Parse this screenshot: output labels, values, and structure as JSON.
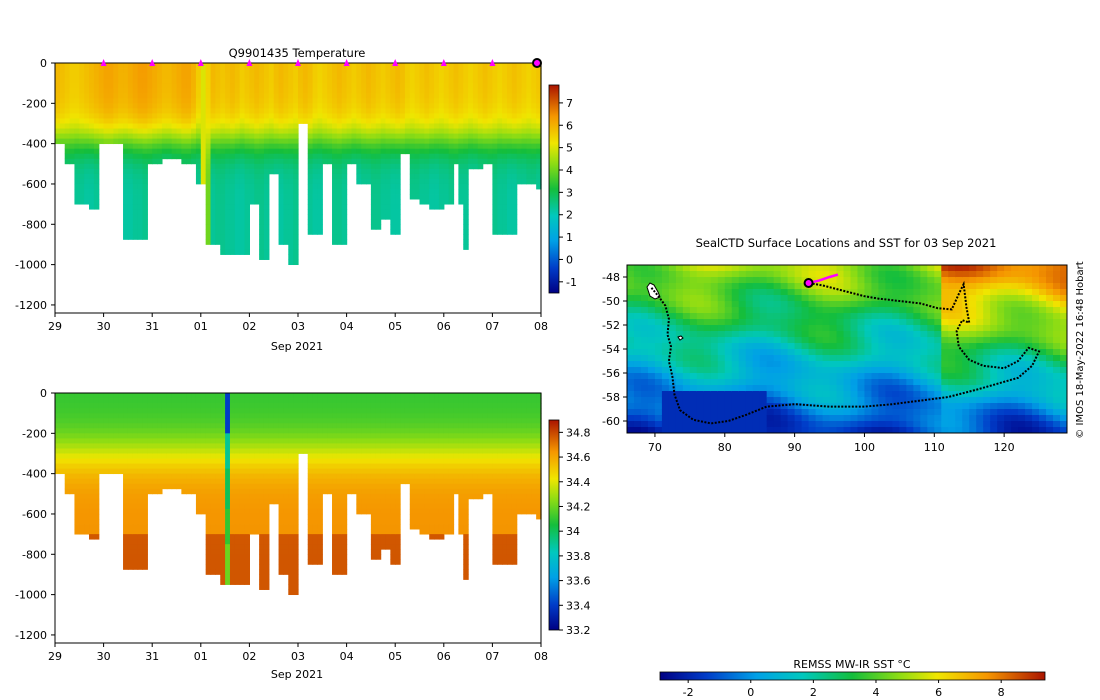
{
  "chart_data": [
    {
      "type": "heatmap",
      "title": "Q9901435  Temperature",
      "xlabel": "Sep 2021",
      "ylabel": "",
      "x_ticks": [
        "29",
        "30",
        "31",
        "01",
        "02",
        "03",
        "04",
        "05",
        "06",
        "07",
        "08"
      ],
      "x_range_days": [
        0,
        10
      ],
      "y_ticks": [
        0,
        -200,
        -400,
        -600,
        -800,
        -1000,
        -1200
      ],
      "ylim": [
        -1240,
        0
      ],
      "colorbar": {
        "ticks": [
          -1,
          0,
          1,
          2,
          3,
          4,
          5,
          6,
          7
        ],
        "range": [
          -1.5,
          7.8
        ]
      },
      "profile_days": [
        0.0,
        0.1,
        0.2,
        0.3,
        0.4,
        0.5,
        0.6,
        0.7,
        0.8,
        0.9,
        1.0,
        1.1,
        1.2,
        1.3,
        1.4,
        1.5,
        1.6,
        1.7,
        1.8,
        1.9,
        2.0,
        2.1,
        2.2,
        2.3,
        2.4,
        2.5,
        2.6,
        2.7,
        2.8,
        2.9,
        3.0,
        3.1,
        3.2,
        3.3,
        3.4,
        3.5,
        3.6,
        3.7,
        3.8,
        3.9,
        4.0,
        4.1,
        4.2,
        4.3,
        4.4,
        4.5,
        4.6,
        4.7,
        4.8,
        4.9,
        5.0,
        5.1,
        5.2,
        5.3,
        5.4,
        5.5,
        5.6,
        5.7,
        5.8,
        5.9,
        6.0,
        6.1,
        6.2,
        6.3,
        6.4,
        6.5,
        6.6,
        6.7,
        6.8,
        6.9,
        7.0,
        7.1,
        7.2,
        7.3,
        7.4,
        7.5,
        7.6,
        7.7,
        7.8,
        7.9,
        8.0,
        8.1,
        8.2,
        8.3,
        8.4,
        8.5,
        8.6,
        8.7,
        8.8,
        8.9,
        9.0,
        9.1,
        9.2,
        9.3,
        9.4,
        9.5,
        9.6,
        9.7,
        9.8,
        9.9
      ],
      "profile_max_depth_m": [
        400,
        400,
        500,
        500,
        700,
        700,
        700,
        710,
        710,
        400,
        400,
        400,
        400,
        400,
        860,
        860,
        860,
        860,
        860,
        480,
        480,
        480,
        460,
        460,
        460,
        460,
        480,
        480,
        480,
        600,
        600,
        900,
        900,
        900,
        950,
        950,
        950,
        950,
        950,
        950,
        700,
        700,
        970,
        970,
        550,
        550,
        880,
        880,
        1000,
        1000,
        280,
        280,
        840,
        840,
        840,
        500,
        500,
        900,
        900,
        900,
        500,
        500,
        600,
        600,
        600,
        820,
        820,
        760,
        760,
        840,
        840,
        430,
        430,
        660,
        660,
        700,
        700,
        710,
        710,
        710,
        700,
        700,
        500,
        700,
        920,
        520,
        520,
        520,
        500,
        500,
        830,
        830,
        830,
        840,
        840,
        600,
        600,
        600,
        600,
        620
      ],
      "surface_temperature_c": [
        5.9,
        5.8,
        5.7,
        5.6,
        5.6,
        5.7,
        5.8,
        5.9,
        6.0,
        6.1,
        6.2,
        6.2,
        6.1,
        6.0,
        6.0,
        6.1,
        6.2,
        6.3,
        6.3,
        6.2,
        6.1,
        6.0,
        5.9,
        5.9,
        6.0,
        6.1,
        6.2,
        6.2,
        6.0,
        5.6,
        5.0,
        5.5,
        5.9,
        5.8,
        5.7,
        5.8,
        5.9,
        5.8,
        5.6,
        5.7,
        5.8,
        5.9,
        5.8,
        5.7,
        5.6,
        5.8,
        5.9,
        5.8,
        5.7,
        5.6,
        5.8,
        5.9,
        5.8,
        5.6,
        5.5,
        5.6,
        5.7,
        5.8,
        5.9,
        5.8,
        5.7,
        5.6,
        5.7,
        5.8,
        5.9,
        5.8,
        5.7,
        5.6,
        5.7,
        5.8,
        5.9,
        5.8,
        5.6,
        5.5,
        5.6,
        5.7,
        5.8,
        5.7,
        5.6,
        5.5,
        5.6,
        5.7,
        5.8,
        5.7,
        5.6,
        5.5,
        5.6,
        5.7,
        5.8,
        5.7,
        5.6,
        5.5,
        5.6,
        5.7,
        5.8,
        5.7,
        5.6,
        5.5,
        5.6,
        5.7
      ],
      "deep_temperature_c": [
        2.3,
        2.3,
        2.4,
        2.4,
        2.3,
        2.3,
        2.2,
        2.2,
        2.3,
        2.3,
        2.4,
        2.4,
        2.3,
        2.3,
        2.2,
        2.2,
        2.3,
        2.3,
        2.4,
        2.4,
        2.3,
        2.3,
        2.2,
        2.2,
        2.3,
        2.3,
        2.4,
        2.4,
        2.3,
        2.3,
        5.0,
        4.0,
        2.3,
        2.4,
        2.4,
        2.3,
        2.3,
        2.2,
        2.2,
        2.3,
        2.3,
        2.4,
        2.4,
        2.3,
        2.3,
        2.2,
        2.2,
        2.3,
        2.3,
        2.4,
        2.4,
        2.3,
        2.3,
        2.2,
        2.2,
        2.3,
        2.3,
        2.4,
        2.4,
        2.3,
        2.3,
        2.2,
        2.2,
        2.3,
        2.3,
        2.4,
        2.4,
        2.3,
        2.3,
        2.2,
        2.2,
        2.3,
        2.3,
        2.4,
        2.4,
        2.3,
        2.3,
        2.2,
        2.2,
        2.3,
        2.3,
        2.4,
        2.4,
        2.3,
        2.3,
        2.2,
        2.2,
        2.3,
        2.3,
        2.4,
        2.4,
        2.3,
        2.3,
        2.2,
        2.2,
        2.3,
        2.3,
        2.4,
        2.4,
        2.3
      ],
      "thermocline_depth_m": 380,
      "marker_days": [
        1,
        2,
        3,
        4,
        5,
        6,
        7,
        8,
        9
      ],
      "latest_profile_day": 10
    },
    {
      "type": "heatmap",
      "title": "",
      "xlabel": "Sep 2021",
      "ylabel": "",
      "x_ticks": [
        "29",
        "30",
        "31",
        "01",
        "02",
        "03",
        "04",
        "05",
        "06",
        "07",
        "08"
      ],
      "x_range_days": [
        0,
        10
      ],
      "y_ticks": [
        0,
        -200,
        -400,
        -600,
        -800,
        -1000,
        -1200
      ],
      "ylim": [
        -1240,
        0
      ],
      "colorbar": {
        "ticks": [
          "33.2",
          "33.4",
          "33.6",
          "33.8",
          "34",
          "34.2",
          "34.4",
          "34.6",
          "34.8"
        ],
        "range": [
          33.2,
          34.9
        ]
      },
      "surface_salinity": 34.1,
      "deep_salinity": 34.65,
      "anomalous_profile_day": 3.5,
      "anomalous_profile_salinity": [
        33.4,
        33.9,
        34.0,
        34.1,
        34.2
      ]
    },
    {
      "type": "heatmap",
      "title": "SealCTD Surface Locations and SST for 03 Sep 2021",
      "xlabel": "",
      "ylabel": "",
      "xlim": [
        66,
        129
      ],
      "ylim": [
        -61,
        -47
      ],
      "x_ticks": [
        70,
        80,
        90,
        100,
        110,
        120
      ],
      "y_ticks": [
        -48,
        -50,
        -52,
        -54,
        -56,
        -58,
        -60
      ],
      "colorbar": {
        "label": "REMSS MW-IR SST °C",
        "ticks": [
          -2,
          0,
          2,
          4,
          6,
          8
        ],
        "range": [
          -2.9,
          9.4
        ]
      },
      "track_lon_lat": [
        [
          69.5,
          -48.9
        ],
        [
          70.5,
          -49.6
        ],
        [
          71.5,
          -50.4
        ],
        [
          72.0,
          -51.5
        ],
        [
          71.8,
          -52.8
        ],
        [
          72.3,
          -53.8
        ],
        [
          72.0,
          -55.0
        ],
        [
          72.5,
          -56.3
        ],
        [
          72.8,
          -57.8
        ],
        [
          73.6,
          -59.1
        ],
        [
          75.5,
          -59.9
        ],
        [
          78.0,
          -60.2
        ],
        [
          80.5,
          -60.0
        ],
        [
          83.0,
          -59.5
        ],
        [
          86.0,
          -58.8
        ],
        [
          90.0,
          -58.6
        ],
        [
          95.0,
          -58.8
        ],
        [
          100.0,
          -58.8
        ],
        [
          104.0,
          -58.6
        ],
        [
          108.0,
          -58.3
        ],
        [
          112.0,
          -58.0
        ],
        [
          116.0,
          -57.4
        ],
        [
          119.0,
          -56.9
        ],
        [
          122.0,
          -56.4
        ],
        [
          124.0,
          -55.4
        ],
        [
          125.0,
          -54.2
        ],
        [
          123.5,
          -53.9
        ],
        [
          122.0,
          -55.0
        ],
        [
          120.0,
          -55.6
        ],
        [
          117.0,
          -55.4
        ],
        [
          115.0,
          -54.9
        ],
        [
          113.5,
          -53.8
        ],
        [
          113.2,
          -52.5
        ],
        [
          114.0,
          -51.6
        ],
        [
          115.0,
          -51.8
        ],
        [
          114.6,
          -50.5
        ],
        [
          114.2,
          -48.6
        ],
        [
          113.6,
          -49.3
        ],
        [
          112.5,
          -50.7
        ],
        [
          110.5,
          -50.6
        ],
        [
          108.0,
          -50.2
        ],
        [
          105.0,
          -50.0
        ],
        [
          102.0,
          -49.8
        ],
        [
          100.0,
          -49.6
        ],
        [
          98.0,
          -49.3
        ],
        [
          96.0,
          -49.0
        ],
        [
          94.0,
          -48.7
        ],
        [
          92.0,
          -48.5
        ]
      ],
      "recent_track_lon_lat": [
        [
          92.0,
          -48.5
        ],
        [
          93.5,
          -48.3
        ],
        [
          95.0,
          -48.0
        ],
        [
          96.2,
          -47.8
        ]
      ],
      "current_location": {
        "lon": 92.0,
        "lat": -48.5
      }
    }
  ],
  "attribution": "© IMOS 18-May-2022 16:48 Hobart"
}
